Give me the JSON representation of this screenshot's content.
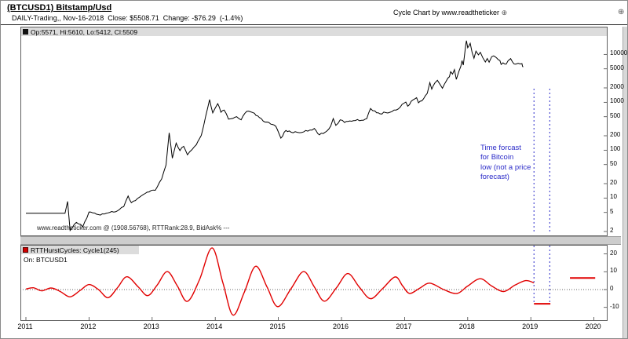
{
  "header": {
    "title": "(BTCUSD1) Bitstamp/Usd",
    "subtitle": "DAILY-Trading,, Nov-16-2018  Close: $5508.71  Change: -$76.29  (-1.4%)",
    "brand": "Cycle Chart by www.readtheticker ",
    "brand_icon": "⊕",
    "corner_icon": "⊕"
  },
  "price_panel": {
    "legend": "Op:5571, Hi:5610, Lo:5412, Cl:5509",
    "watermark": "www.readtheticker.com @ (1908.56768), RTTRank:28.9, BidAsk% ---",
    "annotation": "Time forcast\nfor Bitcoin\nlow (not a price\nforecast)",
    "annotation_color": "#2a2ac8"
  },
  "cycle_panel": {
    "legend": "RTTHurstCycles: Cycle1(245)",
    "sublegend": "On: BTCUSD1"
  },
  "x_axis": {
    "years": [
      2011,
      2012,
      2013,
      2014,
      2015,
      2016,
      2017,
      2018,
      2019,
      2020
    ]
  },
  "chart_data": [
    {
      "type": "line",
      "name": "BTCUSD1 daily close",
      "yscale": "log",
      "ylim": [
        1.9,
        20000
      ],
      "xlim": [
        2011,
        2020.2
      ],
      "grid": false,
      "yticks": [
        10000,
        5000,
        2000,
        1000,
        500,
        200,
        100,
        50,
        20,
        10,
        5,
        2
      ],
      "forecast_lines_x": [
        2019.05,
        2019.3
      ],
      "forecast_color": "#2a2ac8",
      "series": [
        {
          "name": "BTCUSD1",
          "color": "#000000",
          "points": [
            [
              2011.0,
              4.8
            ],
            [
              2011.62,
              4.8
            ],
            [
              2011.66,
              8.5
            ],
            [
              2011.7,
              2.1
            ],
            [
              2011.8,
              3.1
            ],
            [
              2011.9,
              2.5
            ],
            [
              2012.0,
              5.1
            ],
            [
              2012.15,
              4.5
            ],
            [
              2012.3,
              4.9
            ],
            [
              2012.45,
              5.4
            ],
            [
              2012.55,
              6.6
            ],
            [
              2012.62,
              11.0
            ],
            [
              2012.67,
              8.0
            ],
            [
              2012.8,
              10.4
            ],
            [
              2012.95,
              13.4
            ],
            [
              2013.05,
              14.5
            ],
            [
              2013.15,
              25
            ],
            [
              2013.22,
              49
            ],
            [
              2013.27,
              230
            ],
            [
              2013.32,
              68
            ],
            [
              2013.38,
              140
            ],
            [
              2013.44,
              98
            ],
            [
              2013.5,
              120
            ],
            [
              2013.56,
              80
            ],
            [
              2013.63,
              102
            ],
            [
              2013.7,
              130
            ],
            [
              2013.78,
              205
            ],
            [
              2013.85,
              520
            ],
            [
              2013.91,
              1140
            ],
            [
              2013.96,
              600
            ],
            [
              2014.0,
              760
            ],
            [
              2014.04,
              935
            ],
            [
              2014.09,
              620
            ],
            [
              2014.14,
              690
            ],
            [
              2014.21,
              445
            ],
            [
              2014.28,
              460
            ],
            [
              2014.34,
              500
            ],
            [
              2014.41,
              430
            ],
            [
              2014.47,
              590
            ],
            [
              2014.53,
              655
            ],
            [
              2014.62,
              590
            ],
            [
              2014.7,
              480
            ],
            [
              2014.79,
              385
            ],
            [
              2014.88,
              350
            ],
            [
              2014.96,
              315
            ],
            [
              2015.04,
              178
            ],
            [
              2015.12,
              258
            ],
            [
              2015.2,
              238
            ],
            [
              2015.3,
              236
            ],
            [
              2015.4,
              241
            ],
            [
              2015.5,
              263
            ],
            [
              2015.57,
              284
            ],
            [
              2015.65,
              209
            ],
            [
              2015.74,
              236
            ],
            [
              2015.83,
              319
            ],
            [
              2015.87,
              458
            ],
            [
              2015.91,
              329
            ],
            [
              2015.98,
              430
            ],
            [
              2016.05,
              378
            ],
            [
              2016.13,
              408
            ],
            [
              2016.22,
              416
            ],
            [
              2016.32,
              421
            ],
            [
              2016.4,
              455
            ],
            [
              2016.46,
              742
            ],
            [
              2016.53,
              660
            ],
            [
              2016.61,
              575
            ],
            [
              2016.7,
              610
            ],
            [
              2016.8,
              640
            ],
            [
              2016.9,
              728
            ],
            [
              2016.99,
              958
            ],
            [
              2017.02,
              1010
            ],
            [
              2017.05,
              830
            ],
            [
              2017.13,
              1120
            ],
            [
              2017.19,
              1250
            ],
            [
              2017.22,
              975
            ],
            [
              2017.3,
              1180
            ],
            [
              2017.36,
              1540
            ],
            [
              2017.4,
              2580
            ],
            [
              2017.43,
              1880
            ],
            [
              2017.48,
              2540
            ],
            [
              2017.52,
              2880
            ],
            [
              2017.56,
              2390
            ],
            [
              2017.6,
              1960
            ],
            [
              2017.66,
              2780
            ],
            [
              2017.71,
              3420
            ],
            [
              2017.73,
              4350
            ],
            [
              2017.76,
              3880
            ],
            [
              2017.79,
              4820
            ],
            [
              2017.82,
              3020
            ],
            [
              2017.86,
              4380
            ],
            [
              2017.89,
              5620
            ],
            [
              2017.91,
              7450
            ],
            [
              2017.93,
              5980
            ],
            [
              2017.95,
              9820
            ],
            [
              2017.97,
              16400
            ],
            [
              2017.98,
              19300
            ],
            [
              2018.0,
              13800
            ],
            [
              2018.02,
              15050
            ],
            [
              2018.04,
              17080
            ],
            [
              2018.07,
              11000
            ],
            [
              2018.1,
              8300
            ],
            [
              2018.13,
              11700
            ],
            [
              2018.17,
              9800
            ],
            [
              2018.2,
              11050
            ],
            [
              2018.24,
              8500
            ],
            [
              2018.28,
              6950
            ],
            [
              2018.31,
              8200
            ],
            [
              2018.34,
              6890
            ],
            [
              2018.38,
              9000
            ],
            [
              2018.41,
              9340
            ],
            [
              2018.46,
              8380
            ],
            [
              2018.51,
              7480
            ],
            [
              2018.53,
              6180
            ],
            [
              2018.56,
              6700
            ],
            [
              2018.61,
              6280
            ],
            [
              2018.64,
              7400
            ],
            [
              2018.68,
              8180
            ],
            [
              2018.71,
              6950
            ],
            [
              2018.76,
              6280
            ],
            [
              2018.8,
              6520
            ],
            [
              2018.83,
              6320
            ],
            [
              2018.86,
              6420
            ],
            [
              2018.87,
              5580
            ],
            [
              2018.88,
              5509
            ]
          ]
        }
      ]
    },
    {
      "type": "line",
      "name": "RTTHurstCycles Cycle1(245)",
      "yscale": "linear",
      "ylim": [
        -17,
        25
      ],
      "yticks": [
        20,
        10,
        0,
        -10
      ],
      "zero_line": true,
      "forecast_segments": [
        {
          "x1": 2019.05,
          "x2": 2019.31,
          "value": -8
        },
        {
          "x1": 2019.62,
          "x2": 2020.02,
          "value": 6.5
        }
      ],
      "series": [
        {
          "name": "Cycle1(245)",
          "color": "#e10000",
          "points": [
            [
              2011.0,
              0.3
            ],
            [
              2011.12,
              1.0
            ],
            [
              2011.25,
              -0.7
            ],
            [
              2011.4,
              0.9
            ],
            [
              2011.55,
              -1.2
            ],
            [
              2011.7,
              -4.1
            ],
            [
              2011.86,
              -0.5
            ],
            [
              2012.0,
              2.8
            ],
            [
              2012.15,
              0.0
            ],
            [
              2012.3,
              -4.6
            ],
            [
              2012.45,
              1.0
            ],
            [
              2012.6,
              7.2
            ],
            [
              2012.78,
              1.5
            ],
            [
              2012.93,
              -3.4
            ],
            [
              2013.08,
              2.5
            ],
            [
              2013.24,
              10.1
            ],
            [
              2013.4,
              2.0
            ],
            [
              2013.56,
              -6.6
            ],
            [
              2013.75,
              5.5
            ],
            [
              2013.95,
              23.4
            ],
            [
              2014.12,
              4.0
            ],
            [
              2014.28,
              -14.3
            ],
            [
              2014.46,
              -1.5
            ],
            [
              2014.64,
              13.1
            ],
            [
              2014.82,
              1.5
            ],
            [
              2014.99,
              -9.6
            ],
            [
              2015.2,
              0.5
            ],
            [
              2015.4,
              10.1
            ],
            [
              2015.57,
              1.5
            ],
            [
              2015.73,
              -6.5
            ],
            [
              2015.92,
              1.0
            ],
            [
              2016.1,
              9.0
            ],
            [
              2016.28,
              1.5
            ],
            [
              2016.46,
              -5.1
            ],
            [
              2016.65,
              0.5
            ],
            [
              2016.85,
              7.1
            ],
            [
              2016.97,
              2.0
            ],
            [
              2017.08,
              -2.2
            ],
            [
              2017.24,
              0.8
            ],
            [
              2017.4,
              3.6
            ],
            [
              2017.62,
              0.0
            ],
            [
              2017.83,
              -2.2
            ],
            [
              2018.0,
              2.0
            ],
            [
              2018.2,
              6.1
            ],
            [
              2018.38,
              2.0
            ],
            [
              2018.57,
              -1.1
            ],
            [
              2018.75,
              2.5
            ],
            [
              2018.92,
              5.0
            ],
            [
              2019.05,
              3.8
            ]
          ]
        }
      ]
    }
  ]
}
